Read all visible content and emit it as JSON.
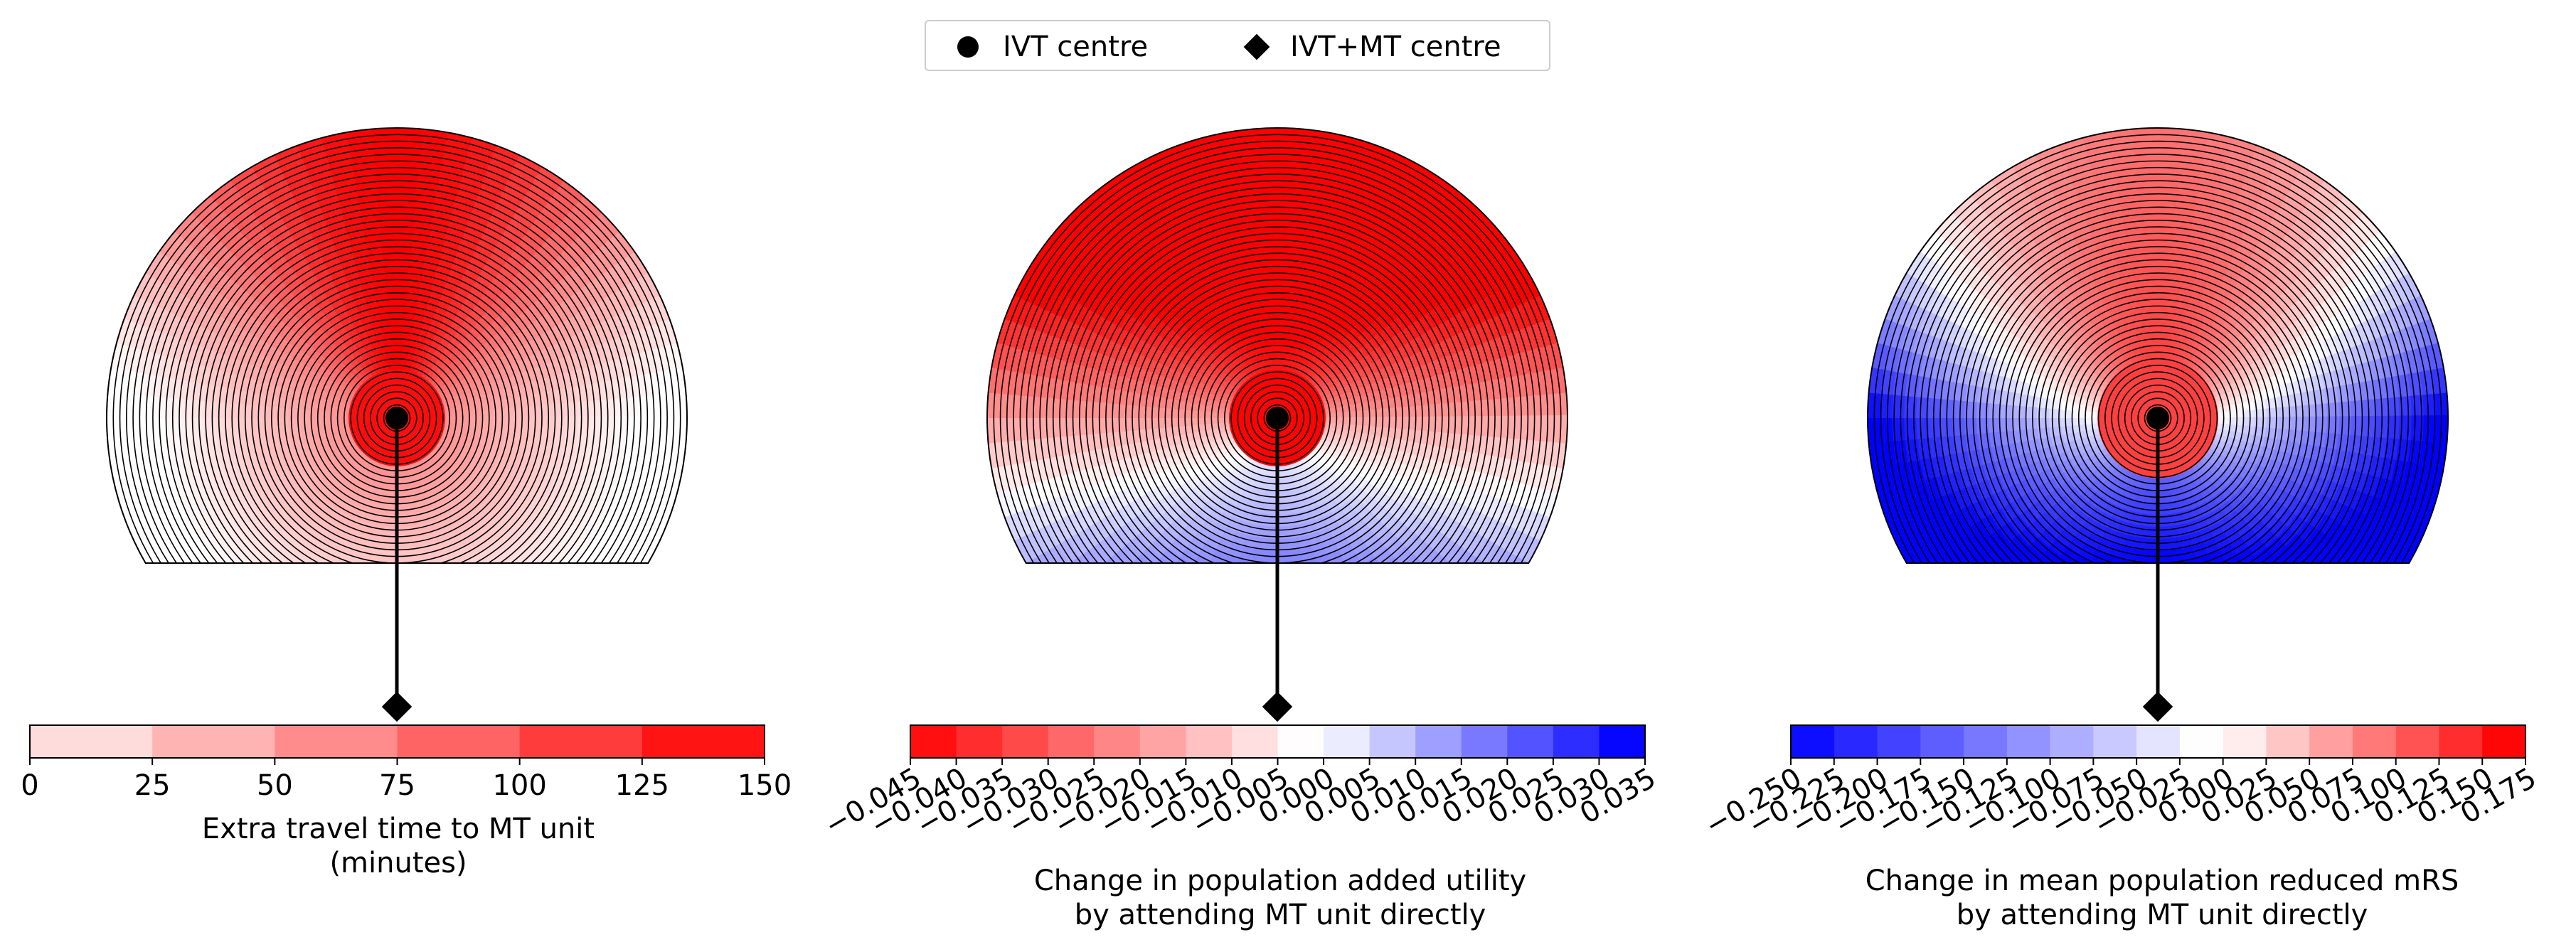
{
  "legend": {
    "ivt_label": "IVT centre",
    "mt_label": "IVT+MT centre",
    "ivt_marker_icon": "circle-marker-icon",
    "mt_marker_icon": "diamond-marker-icon"
  },
  "chart_data": [
    {
      "type": "heatmap",
      "shape": "half-disc with flat bottom (concentric rings)",
      "colormap": "white-to-red",
      "colorbar": {
        "ticks": [
          "0",
          "25",
          "50",
          "75",
          "100",
          "125",
          "150"
        ],
        "range": [
          0,
          150
        ],
        "step": 25,
        "label_line1": "Extra travel time to MT unit",
        "label_line2": "(minutes)"
      }
    },
    {
      "type": "heatmap",
      "shape": "half-disc with flat bottom (concentric rings)",
      "colormap": "red-white-blue",
      "colorbar": {
        "ticks": [
          "−0.045",
          "−0.040",
          "−0.035",
          "−0.030",
          "−0.025",
          "−0.020",
          "−0.015",
          "−0.010",
          "−0.005",
          "0.000",
          "0.005",
          "0.010",
          "0.015",
          "0.020",
          "0.025",
          "0.030",
          "0.035"
        ],
        "range": [
          -0.045,
          0.035
        ],
        "step": 0.005,
        "label_line1": "Change in population added utility",
        "label_line2": "by attending MT unit directly"
      }
    },
    {
      "type": "heatmap",
      "shape": "half-disc with flat bottom (concentric rings)",
      "colormap": "blue-white-red",
      "colorbar": {
        "ticks": [
          "−0.250",
          "−0.225",
          "−0.200",
          "−0.175",
          "−0.150",
          "−0.125",
          "−0.100",
          "−0.075",
          "−0.050",
          "−0.025",
          "0.000",
          "0.025",
          "0.050",
          "0.075",
          "0.100",
          "0.125",
          "0.150",
          "0.175"
        ],
        "range": [
          -0.25,
          0.175
        ],
        "step": 0.025,
        "label_line1": "Change in mean population reduced mRS",
        "label_line2": "by attending MT unit directly"
      }
    }
  ]
}
